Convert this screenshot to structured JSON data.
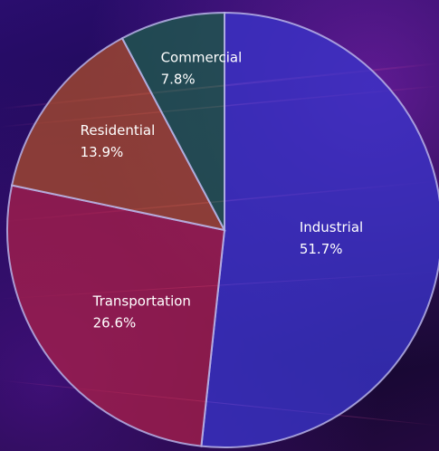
{
  "chart_data": {
    "type": "pie",
    "title": "",
    "slices": [
      {
        "label": "Industrial",
        "value": 51.7,
        "value_label": "51.7%",
        "color": "#3a33c9"
      },
      {
        "label": "Transportation",
        "value": 26.6,
        "value_label": "26.6%",
        "color": "#a51f4a"
      },
      {
        "label": "Residential",
        "value": 13.9,
        "value_label": "13.9%",
        "color": "#a54a2c"
      },
      {
        "label": "Commercial",
        "value": 7.8,
        "value_label": "7.8%",
        "color": "#1d5a4c"
      }
    ],
    "legend": "none",
    "start_angle_deg": 0,
    "direction": "clockwise"
  }
}
